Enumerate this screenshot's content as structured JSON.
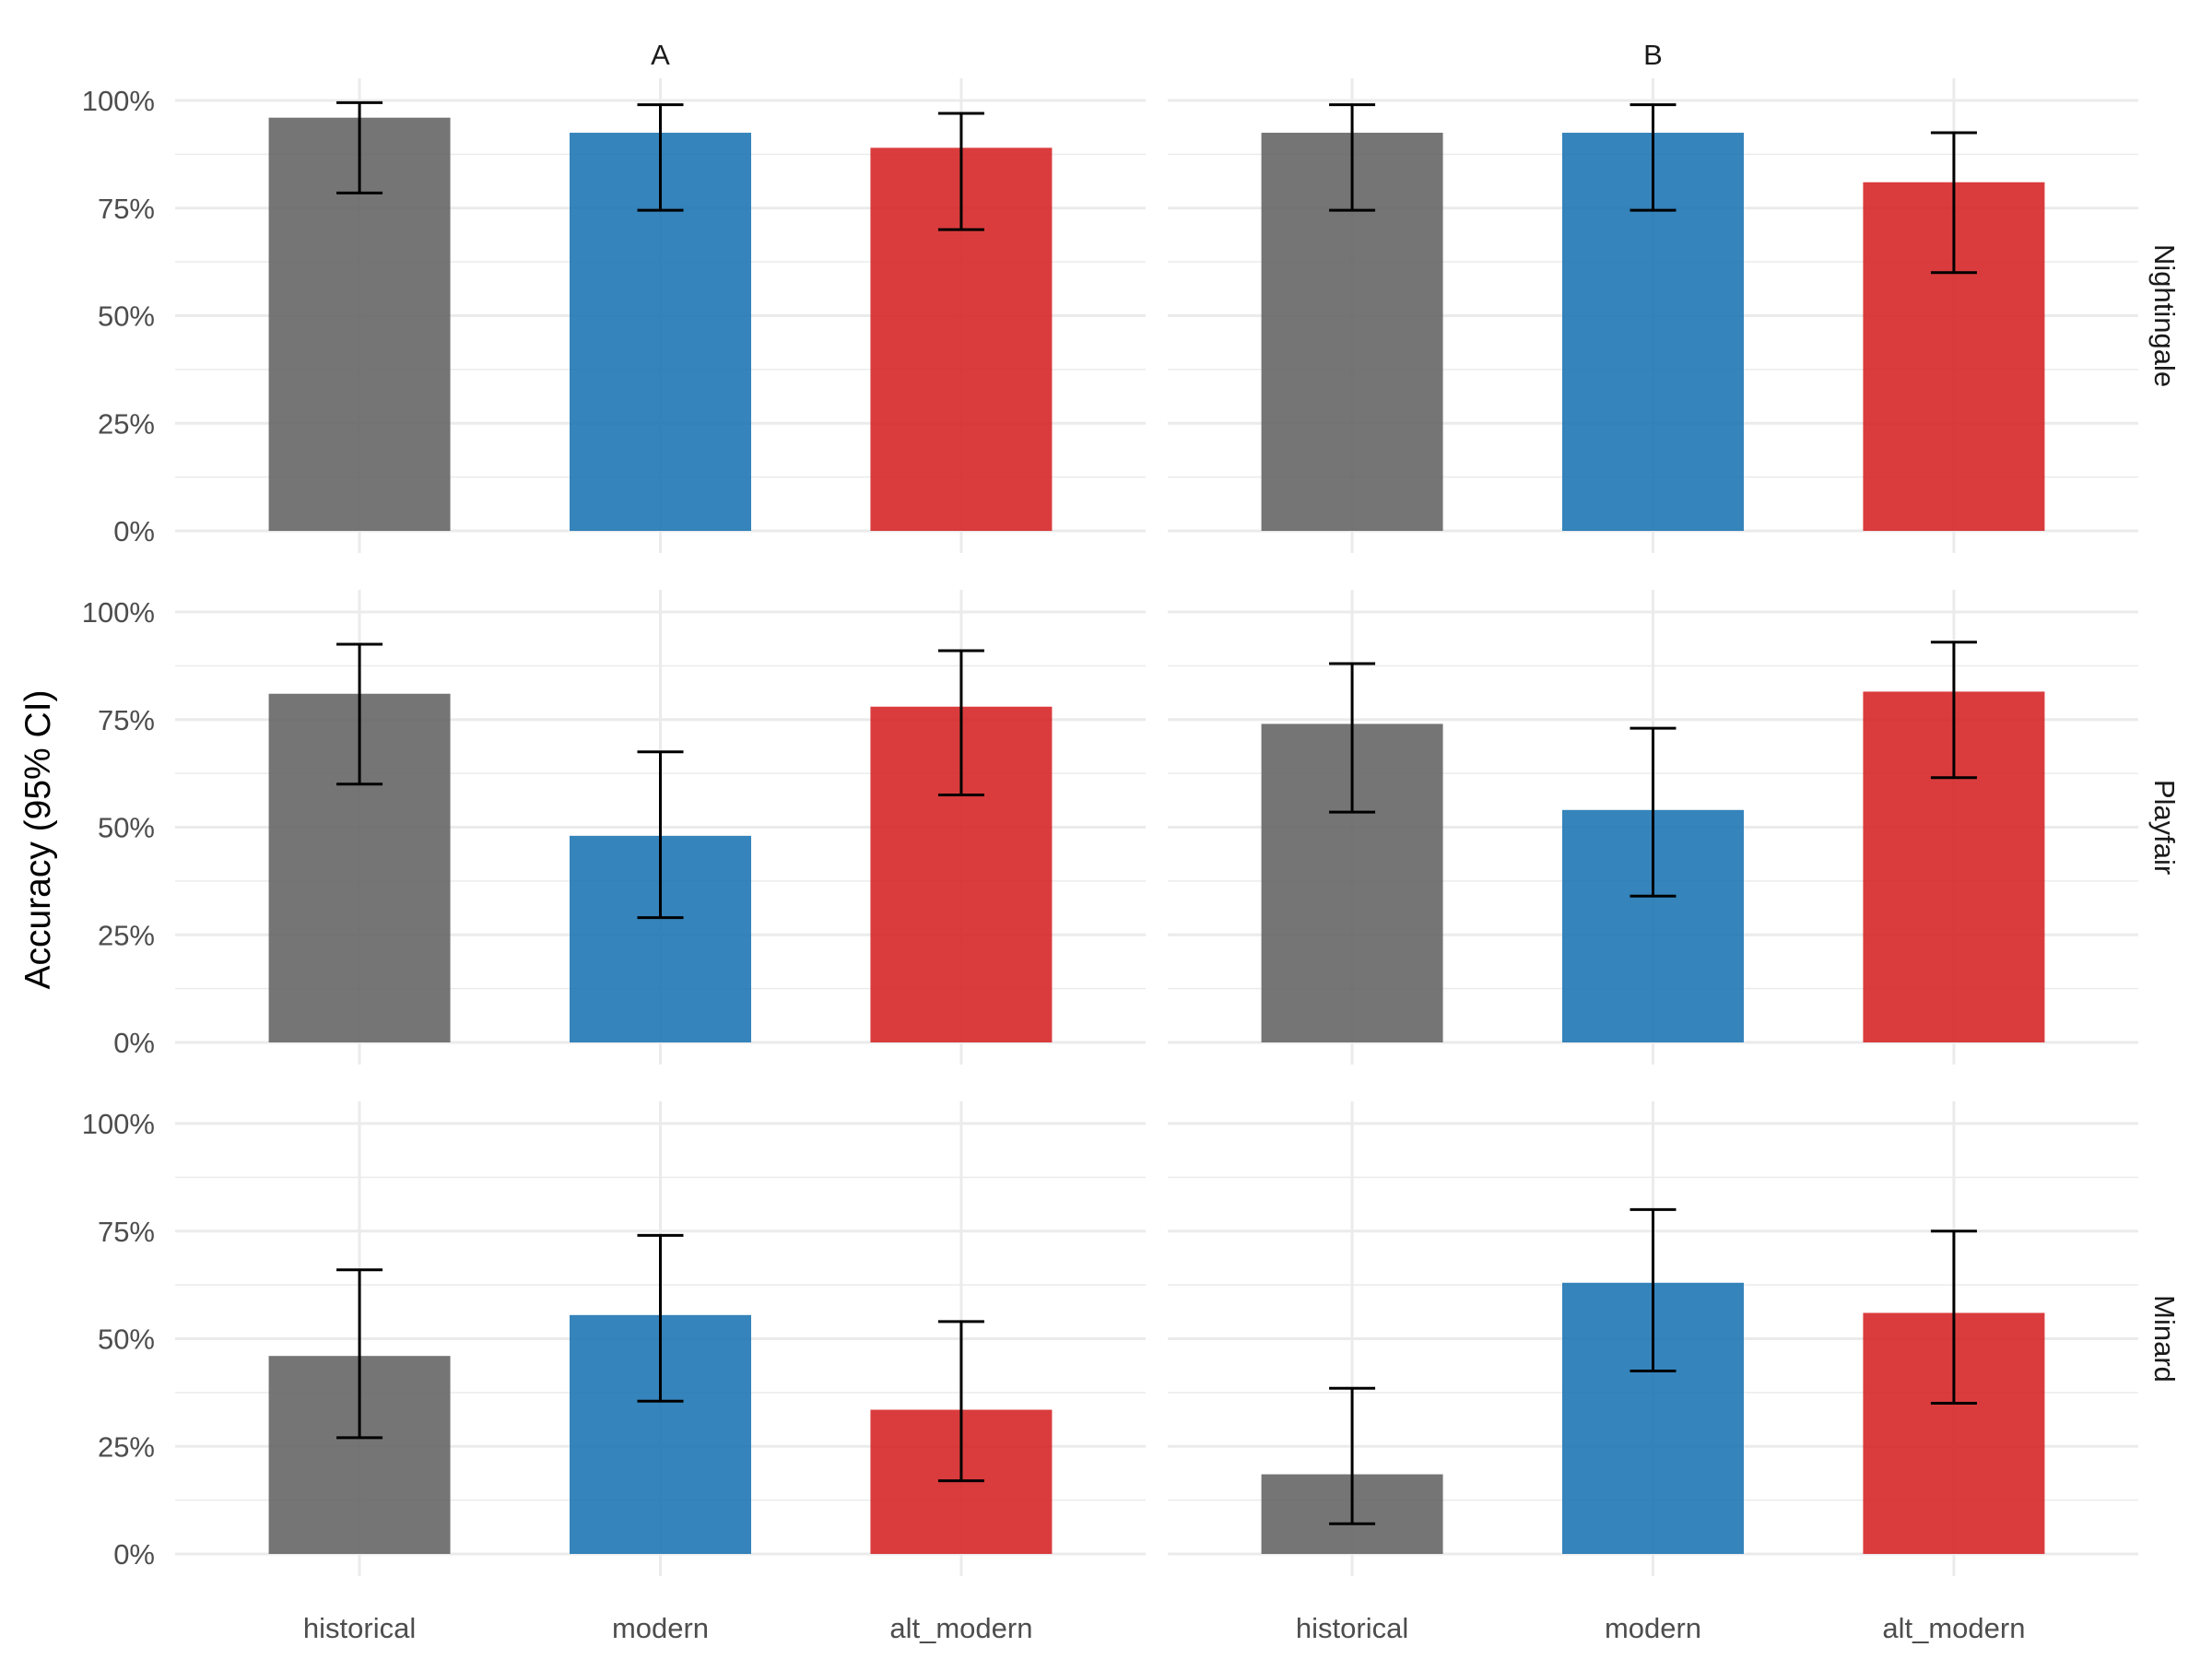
{
  "chart_data": {
    "type": "bar",
    "title": "",
    "xlabel": "",
    "ylabel": "Accuracy (95% CI)",
    "ylim": [
      0,
      100
    ],
    "y_ticks": [
      0,
      25,
      50,
      75,
      100
    ],
    "y_tick_labels": [
      "0%",
      "25%",
      "50%",
      "75%",
      "100%"
    ],
    "grid": true,
    "categories": [
      "historical",
      "modern",
      "alt_modern"
    ],
    "colors": {
      "historical": "#666666",
      "modern": "#1f77b4",
      "alt_modern": "#d62728"
    },
    "columns": [
      "A",
      "B"
    ],
    "rows": [
      "Nightingale",
      "Playfair",
      "Minard"
    ],
    "panels": [
      {
        "row": "Nightingale",
        "column": "A",
        "values": [
          96,
          92.5,
          89
        ],
        "ci_lower": [
          78.5,
          74.5,
          70
        ],
        "ci_upper": [
          99.5,
          99,
          97
        ]
      },
      {
        "row": "Nightingale",
        "column": "B",
        "values": [
          92.5,
          92.5,
          81
        ],
        "ci_lower": [
          74.5,
          74.5,
          60
        ],
        "ci_upper": [
          99,
          99,
          92.5
        ]
      },
      {
        "row": "Playfair",
        "column": "A",
        "values": [
          81,
          48,
          78
        ],
        "ci_lower": [
          60,
          29,
          57.5
        ],
        "ci_upper": [
          92.5,
          67.5,
          91
        ]
      },
      {
        "row": "Playfair",
        "column": "B",
        "values": [
          74,
          54,
          81.5
        ],
        "ci_lower": [
          53.5,
          34,
          61.5
        ],
        "ci_upper": [
          88,
          73,
          93
        ]
      },
      {
        "row": "Minard",
        "column": "A",
        "values": [
          46,
          55.5,
          33.5
        ],
        "ci_lower": [
          27,
          35.5,
          17
        ],
        "ci_upper": [
          66,
          74,
          54
        ]
      },
      {
        "row": "Minard",
        "column": "B",
        "values": [
          18.5,
          63,
          56
        ],
        "ci_lower": [
          7,
          42.5,
          35
        ],
        "ci_upper": [
          38.5,
          80,
          75
        ]
      }
    ]
  }
}
